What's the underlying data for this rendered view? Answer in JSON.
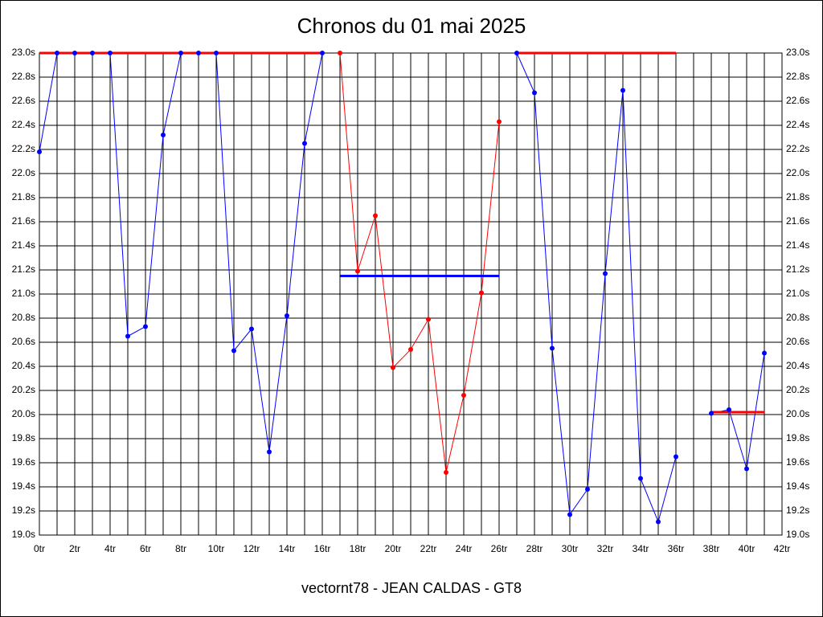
{
  "chart_data": {
    "type": "line",
    "title": "Chronos du 01 mai 2025",
    "x_label": "vectornt78 - JEAN CALDAS - GT8",
    "x": [
      0,
      1,
      2,
      3,
      4,
      5,
      6,
      7,
      8,
      9,
      10,
      11,
      12,
      13,
      14,
      15,
      16,
      17,
      18,
      19,
      20,
      21,
      22,
      23,
      24,
      25,
      26,
      27,
      28,
      29,
      30,
      31,
      32,
      33,
      34,
      35,
      36,
      37,
      38,
      39,
      40,
      41
    ],
    "series": [
      {
        "color": "#0000ff",
        "values": [
          22.18,
          23.0,
          23.0,
          23.0,
          23.0,
          20.65,
          20.73,
          22.32,
          23.0,
          23.0,
          23.0,
          20.53,
          20.71,
          19.69,
          20.82,
          22.25,
          23.0,
          null,
          null,
          null,
          null,
          null,
          null,
          null,
          null,
          null,
          null,
          23.0,
          22.67,
          20.55,
          19.17,
          19.38,
          21.17,
          22.69,
          19.47,
          19.11,
          19.65,
          null,
          20.01,
          20.04,
          19.55,
          20.51
        ]
      },
      {
        "color": "#ff0000",
        "values": [
          null,
          null,
          null,
          null,
          null,
          null,
          null,
          null,
          null,
          null,
          null,
          null,
          null,
          null,
          null,
          null,
          null,
          23.0,
          21.19,
          21.65,
          20.39,
          20.54,
          20.79,
          19.52,
          20.16,
          21.01,
          22.43,
          null,
          null,
          null,
          null,
          null,
          null,
          null,
          null,
          null,
          null,
          null,
          null,
          null,
          null,
          null
        ]
      }
    ],
    "reference_lines": [
      {
        "color": "#ff0000",
        "value": 23.0,
        "from": 0,
        "to": 16
      },
      {
        "color": "#0000ff",
        "value": 21.15,
        "from": 17,
        "to": 26
      },
      {
        "color": "#ff0000",
        "value": 23.0,
        "from": 27,
        "to": 36
      },
      {
        "color": "#ff0000",
        "value": 20.02,
        "from": 38,
        "to": 41
      }
    ],
    "xlim": [
      0,
      42
    ],
    "xticks": [
      {
        "value": 0,
        "label": "0tr"
      },
      {
        "value": 2,
        "label": "2tr"
      },
      {
        "value": 4,
        "label": "4tr"
      },
      {
        "value": 6,
        "label": "6tr"
      },
      {
        "value": 8,
        "label": "8tr"
      },
      {
        "value": 10,
        "label": "10tr"
      },
      {
        "value": 12,
        "label": "12tr"
      },
      {
        "value": 14,
        "label": "14tr"
      },
      {
        "value": 16,
        "label": "16tr"
      },
      {
        "value": 18,
        "label": "18tr"
      },
      {
        "value": 20,
        "label": "20tr"
      },
      {
        "value": 22,
        "label": "22tr"
      },
      {
        "value": 24,
        "label": "24tr"
      },
      {
        "value": 26,
        "label": "26tr"
      },
      {
        "value": 28,
        "label": "28tr"
      },
      {
        "value": 30,
        "label": "30tr"
      },
      {
        "value": 32,
        "label": "32tr"
      },
      {
        "value": 34,
        "label": "34tr"
      },
      {
        "value": 36,
        "label": "36tr"
      },
      {
        "value": 38,
        "label": "38tr"
      },
      {
        "value": 40,
        "label": "40tr"
      },
      {
        "value": 42,
        "label": "42tr"
      }
    ],
    "ylim": [
      19.0,
      23.0
    ],
    "yticks": [
      {
        "value": 19.0,
        "label": "19.0s"
      },
      {
        "value": 19.2,
        "label": "19.2s"
      },
      {
        "value": 19.4,
        "label": "19.4s"
      },
      {
        "value": 19.6,
        "label": "19.6s"
      },
      {
        "value": 19.8,
        "label": "19.8s"
      },
      {
        "value": 20.0,
        "label": "20.0s"
      },
      {
        "value": 20.2,
        "label": "20.2s"
      },
      {
        "value": 20.4,
        "label": "20.4s"
      },
      {
        "value": 20.6,
        "label": "20.6s"
      },
      {
        "value": 20.8,
        "label": "20.8s"
      },
      {
        "value": 21.0,
        "label": "21.0s"
      },
      {
        "value": 21.2,
        "label": "21.2s"
      },
      {
        "value": 21.4,
        "label": "21.4s"
      },
      {
        "value": 21.6,
        "label": "21.6s"
      },
      {
        "value": 21.8,
        "label": "21.8s"
      },
      {
        "value": 22.0,
        "label": "22.0s"
      },
      {
        "value": 22.2,
        "label": "22.2s"
      },
      {
        "value": 22.4,
        "label": "22.4s"
      },
      {
        "value": 22.6,
        "label": "22.6s"
      },
      {
        "value": 22.8,
        "label": "22.8s"
      },
      {
        "value": 23.0,
        "label": "23.0s"
      }
    ],
    "y2_mirrors_y": true,
    "grid": true,
    "minor_x_grid": true
  }
}
